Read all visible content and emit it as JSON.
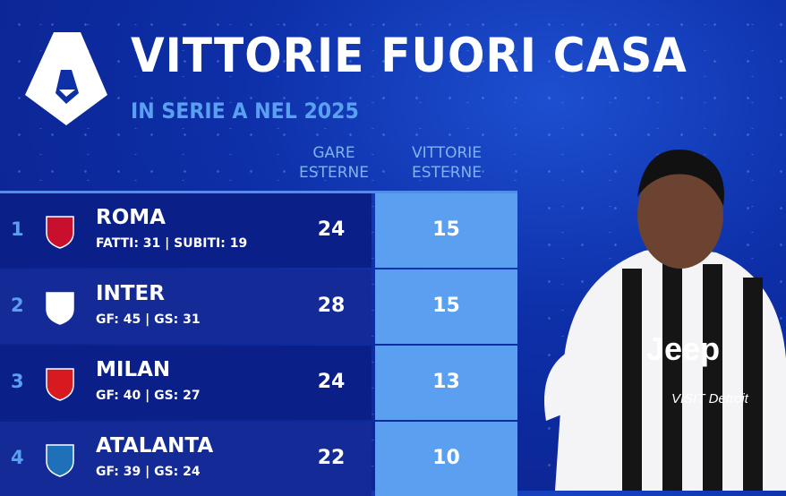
{
  "header": {
    "title": "VITTORIE FUORI CASA",
    "subtitle": "IN SERIE A NEL 2025",
    "logo_icon": "serie-a-logo"
  },
  "columns": {
    "games": "GARE\nESTERNE",
    "wins": "VITTORIE\nESTERNE"
  },
  "rows": [
    {
      "rank": "1",
      "team": "ROMA",
      "stats": "FATTI: 31 | SUBITI: 19",
      "games": "24",
      "wins": "15",
      "crest_color": "#c8102e"
    },
    {
      "rank": "2",
      "team": "INTER",
      "stats": "GF: 45 | GS: 31",
      "games": "28",
      "wins": "15",
      "crest_color": "#ffffff"
    },
    {
      "rank": "3",
      "team": "MILAN",
      "stats": "GF: 40 | GS: 27",
      "games": "24",
      "wins": "13",
      "crest_color": "#d71920"
    },
    {
      "rank": "4",
      "team": "ATALANTA",
      "stats": "GF: 39 | GS: 24",
      "games": "22",
      "wins": "10",
      "crest_color": "#1e71b8"
    }
  ],
  "player": {
    "sponsor": "Jeep",
    "sleeve": "VISIT Detroit"
  }
}
